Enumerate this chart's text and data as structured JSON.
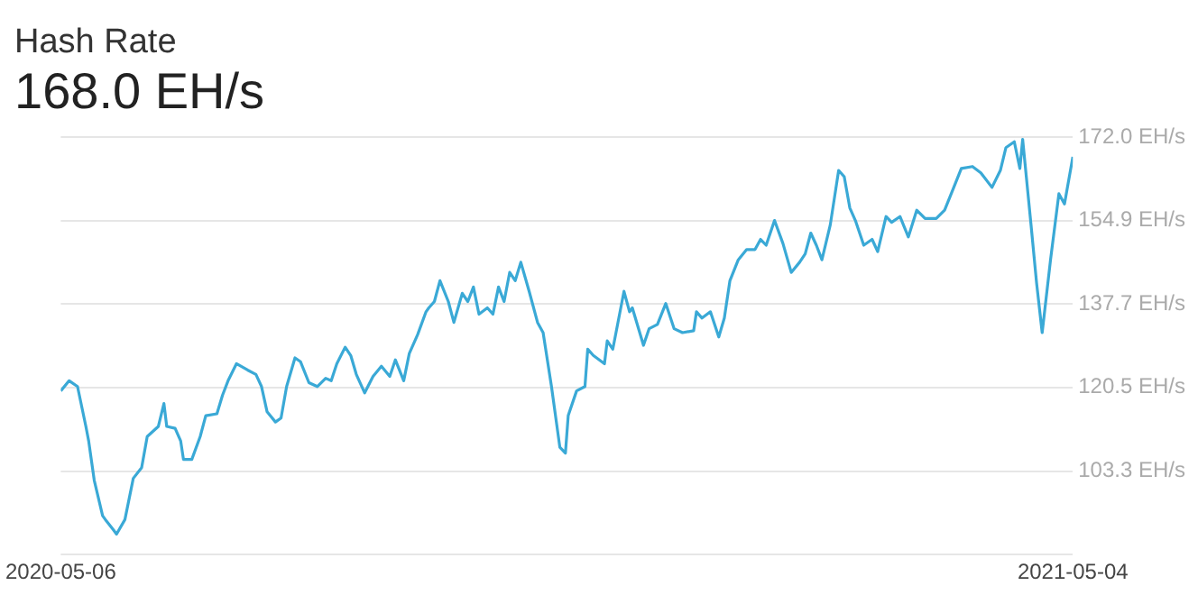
{
  "chart_data": {
    "type": "line",
    "title": "Hash Rate",
    "subtitle": "168.0 EH/s",
    "x": [
      "2020-05-06",
      "2020-05-09",
      "2020-05-12",
      "2020-05-15",
      "2020-05-16",
      "2020-05-18",
      "2020-05-21",
      "2020-05-22",
      "2020-05-25",
      "2020-05-26",
      "2020-05-29",
      "2020-06-01",
      "2020-06-04",
      "2020-06-06",
      "2020-06-10",
      "2020-06-12",
      "2020-06-13",
      "2020-06-16",
      "2020-06-18",
      "2020-06-19",
      "2020-06-22",
      "2020-06-25",
      "2020-06-27",
      "2020-07-01",
      "2020-07-03",
      "2020-07-05",
      "2020-07-08",
      "2020-07-12",
      "2020-07-15",
      "2020-07-17",
      "2020-07-19",
      "2020-07-22",
      "2020-07-24",
      "2020-07-26",
      "2020-07-29",
      "2020-07-31",
      "2020-08-03",
      "2020-08-06",
      "2020-08-09",
      "2020-08-11",
      "2020-08-13",
      "2020-08-16",
      "2020-08-18",
      "2020-08-20",
      "2020-08-23",
      "2020-08-26",
      "2020-08-29",
      "2020-09-01",
      "2020-09-03",
      "2020-09-06",
      "2020-09-08",
      "2020-09-11",
      "2020-09-14",
      "2020-09-15",
      "2020-09-17",
      "2020-09-19",
      "2020-09-22",
      "2020-09-24",
      "2020-09-27",
      "2020-09-29",
      "2020-10-01",
      "2020-10-03",
      "2020-10-06",
      "2020-10-08",
      "2020-10-10",
      "2020-10-12",
      "2020-10-14",
      "2020-10-16",
      "2020-10-18",
      "2020-10-21",
      "2020-10-24",
      "2020-10-26",
      "2020-10-29",
      "2020-11-01",
      "2020-11-03",
      "2020-11-04",
      "2020-11-07",
      "2020-11-10",
      "2020-11-11",
      "2020-11-13",
      "2020-11-17",
      "2020-11-18",
      "2020-11-20",
      "2020-11-24",
      "2020-11-26",
      "2020-11-27",
      "2020-12-01",
      "2020-12-03",
      "2020-12-06",
      "2020-12-09",
      "2020-12-12",
      "2020-12-15",
      "2020-12-19",
      "2020-12-20",
      "2020-12-22",
      "2020-12-25",
      "2020-12-28",
      "2020-12-30",
      "2021-01-01",
      "2021-01-04",
      "2021-01-07",
      "2021-01-10",
      "2021-01-12",
      "2021-01-14",
      "2021-01-17",
      "2021-01-20",
      "2021-01-23",
      "2021-01-26",
      "2021-01-28",
      "2021-01-30",
      "2021-02-01",
      "2021-02-03",
      "2021-02-06",
      "2021-02-09",
      "2021-02-11",
      "2021-02-13",
      "2021-02-15",
      "2021-02-18",
      "2021-02-21",
      "2021-02-23",
      "2021-02-26",
      "2021-02-28",
      "2021-03-03",
      "2021-03-06",
      "2021-03-09",
      "2021-03-12",
      "2021-03-16",
      "2021-03-19",
      "2021-03-22",
      "2021-03-25",
      "2021-03-29",
      "2021-04-01",
      "2021-04-05",
      "2021-04-08",
      "2021-04-10",
      "2021-04-13",
      "2021-04-15",
      "2021-04-16",
      "2021-04-19",
      "2021-04-21",
      "2021-04-23",
      "2021-04-26",
      "2021-04-29",
      "2021-05-01",
      "2021-05-04"
    ],
    "series": [
      {
        "color": "#3aa9d6",
        "values": [
          119.8,
          121.9,
          120.7,
          112.5,
          109.5,
          101.4,
          94.1,
          93.3,
          91.1,
          90.3,
          93.3,
          101.8,
          104.0,
          110.4,
          112.5,
          117.2,
          112.5,
          112.1,
          109.5,
          105.7,
          105.7,
          110.4,
          114.7,
          115.1,
          118.9,
          121.9,
          125.4,
          124.1,
          123.2,
          120.7,
          115.5,
          113.4,
          114.2,
          120.7,
          126.6,
          125.8,
          121.5,
          120.7,
          122.4,
          121.9,
          125.4,
          128.8,
          127.1,
          123.2,
          119.4,
          122.8,
          124.9,
          122.8,
          126.2,
          121.9,
          127.5,
          131.4,
          136.1,
          136.9,
          138.2,
          142.5,
          138.2,
          133.9,
          139.9,
          138.2,
          141.2,
          135.6,
          136.9,
          135.6,
          141.2,
          138.2,
          144.2,
          142.5,
          146.3,
          140.3,
          133.9,
          131.8,
          120.7,
          108.2,
          107.0,
          114.7,
          119.8,
          120.7,
          128.4,
          127.1,
          125.4,
          130.1,
          128.4,
          140.3,
          136.1,
          136.9,
          129.2,
          132.6,
          133.5,
          137.8,
          132.6,
          131.8,
          132.2,
          136.1,
          134.8,
          136.1,
          130.9,
          134.8,
          142.5,
          146.8,
          148.9,
          148.9,
          151.0,
          149.8,
          154.9,
          150.2,
          144.2,
          146.3,
          148.0,
          152.3,
          149.8,
          146.8,
          154.0,
          165.2,
          163.9,
          157.5,
          154.9,
          149.8,
          151.0,
          148.5,
          155.7,
          154.5,
          155.7,
          151.5,
          157.0,
          155.3,
          155.3,
          157.0,
          161.3,
          165.6,
          166.0,
          164.7,
          161.7,
          165.2,
          169.9,
          171.1,
          165.6,
          171.6,
          154.0,
          142.0,
          131.8,
          146.8,
          160.4,
          158.3,
          168.0
        ]
      }
    ],
    "xlim": [
      "2020-05-06",
      "2021-05-04"
    ],
    "xticks": [
      "2020-05-06",
      "2021-05-04"
    ],
    "ylim": [
      86.1,
      172.0
    ],
    "yticks": [
      {
        "value": 86.1,
        "label": null
      },
      {
        "value": 103.3,
        "label": "103.3 EH/s"
      },
      {
        "value": 120.5,
        "label": "120.5 EH/s"
      },
      {
        "value": 137.7,
        "label": "137.7 EH/s"
      },
      {
        "value": 154.9,
        "label": "154.9 EH/s"
      },
      {
        "value": 172.0,
        "label": "172.0 EH/s"
      }
    ],
    "grid": "y",
    "legend": false,
    "marker": "none",
    "line_style": "solid"
  }
}
